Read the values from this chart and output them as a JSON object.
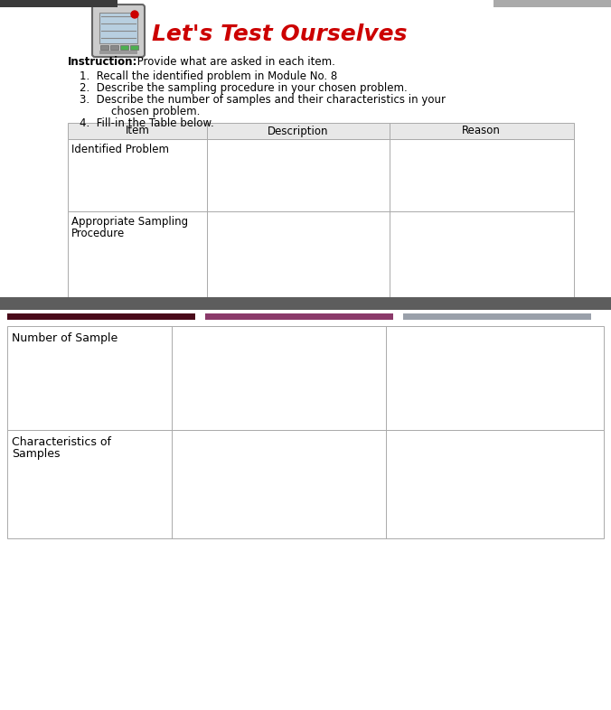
{
  "title": "Let's Test Ourselves",
  "title_color": "#cc0000",
  "instruction_bold": "Instruction:",
  "instruction_text": " Provide what are asked in each item.",
  "item1": "Recall the identified problem in Module No. 8",
  "item2": "Describe the sampling procedure in your chosen problem.",
  "item3a": "Describe the number of samples and their characteristics in your",
  "item3b": "chosen problem.",
  "item4": "Fill-in the Table below.",
  "table1_headers": [
    "Item",
    "Description",
    "Reason"
  ],
  "row1_label": "Identified Problem",
  "row2_label1": "Appropriate Sampling",
  "row2_label2": "Procedure",
  "row3_label": "Number of Sample",
  "row4_label1": "Characteristics of",
  "row4_label2": "Samples",
  "col_ratios": [
    0.275,
    0.36,
    0.365
  ],
  "divider_colors": [
    "#4a0a1a",
    "#8b3a6a",
    "#9aA0aa"
  ],
  "table_border_color": "#aaaaaa",
  "dark_bar_color": "#606060",
  "bg_color": "#e8e8e8",
  "white": "#ffffff",
  "header_bg": "#e0e0e0",
  "font_size_title": 18,
  "font_size_body": 8.5,
  "font_size_table": 8.5
}
